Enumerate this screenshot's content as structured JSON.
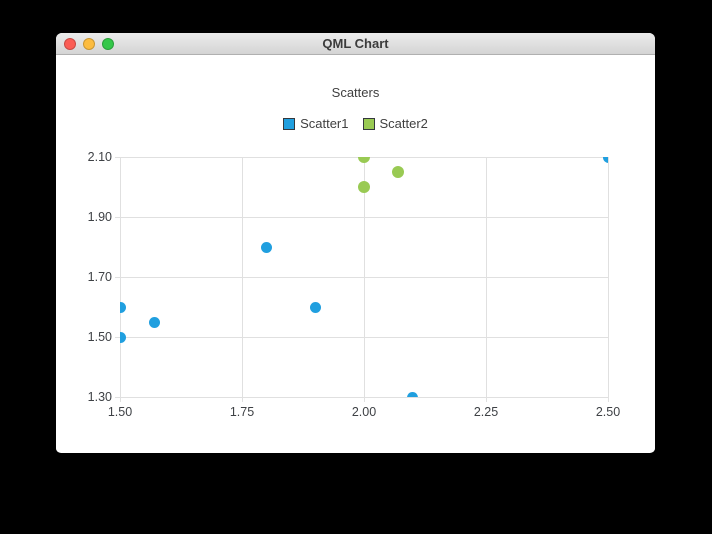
{
  "window": {
    "title": "QML Chart",
    "traffic_lights": {
      "close_color": "#fb5d55",
      "minimize_color": "#fcbc40",
      "zoom_color": "#34c749"
    }
  },
  "chart_data": {
    "type": "scatter",
    "title": "Scatters",
    "series": [
      {
        "name": "Scatter1",
        "color": "#209fdf",
        "marker_size": 11,
        "points": [
          [
            1.5,
            1.5
          ],
          [
            1.5,
            1.6
          ],
          [
            1.57,
            1.55
          ],
          [
            1.8,
            1.8
          ],
          [
            1.9,
            1.6
          ],
          [
            2.1,
            1.3
          ],
          [
            2.5,
            2.1
          ]
        ]
      },
      {
        "name": "Scatter2",
        "color": "#99ca53",
        "marker_size": 12,
        "points": [
          [
            2.0,
            2.0
          ],
          [
            2.0,
            2.1
          ],
          [
            2.07,
            2.05
          ]
        ]
      }
    ],
    "x_ticks": [
      "1.50",
      "1.75",
      "2.00",
      "2.25",
      "2.50"
    ],
    "y_ticks": [
      "2.10",
      "1.90",
      "1.70",
      "1.50",
      "1.30"
    ],
    "xlim": [
      1.5,
      2.5
    ],
    "ylim": [
      1.3,
      2.1
    ],
    "grid": true,
    "legend_position": "top"
  }
}
